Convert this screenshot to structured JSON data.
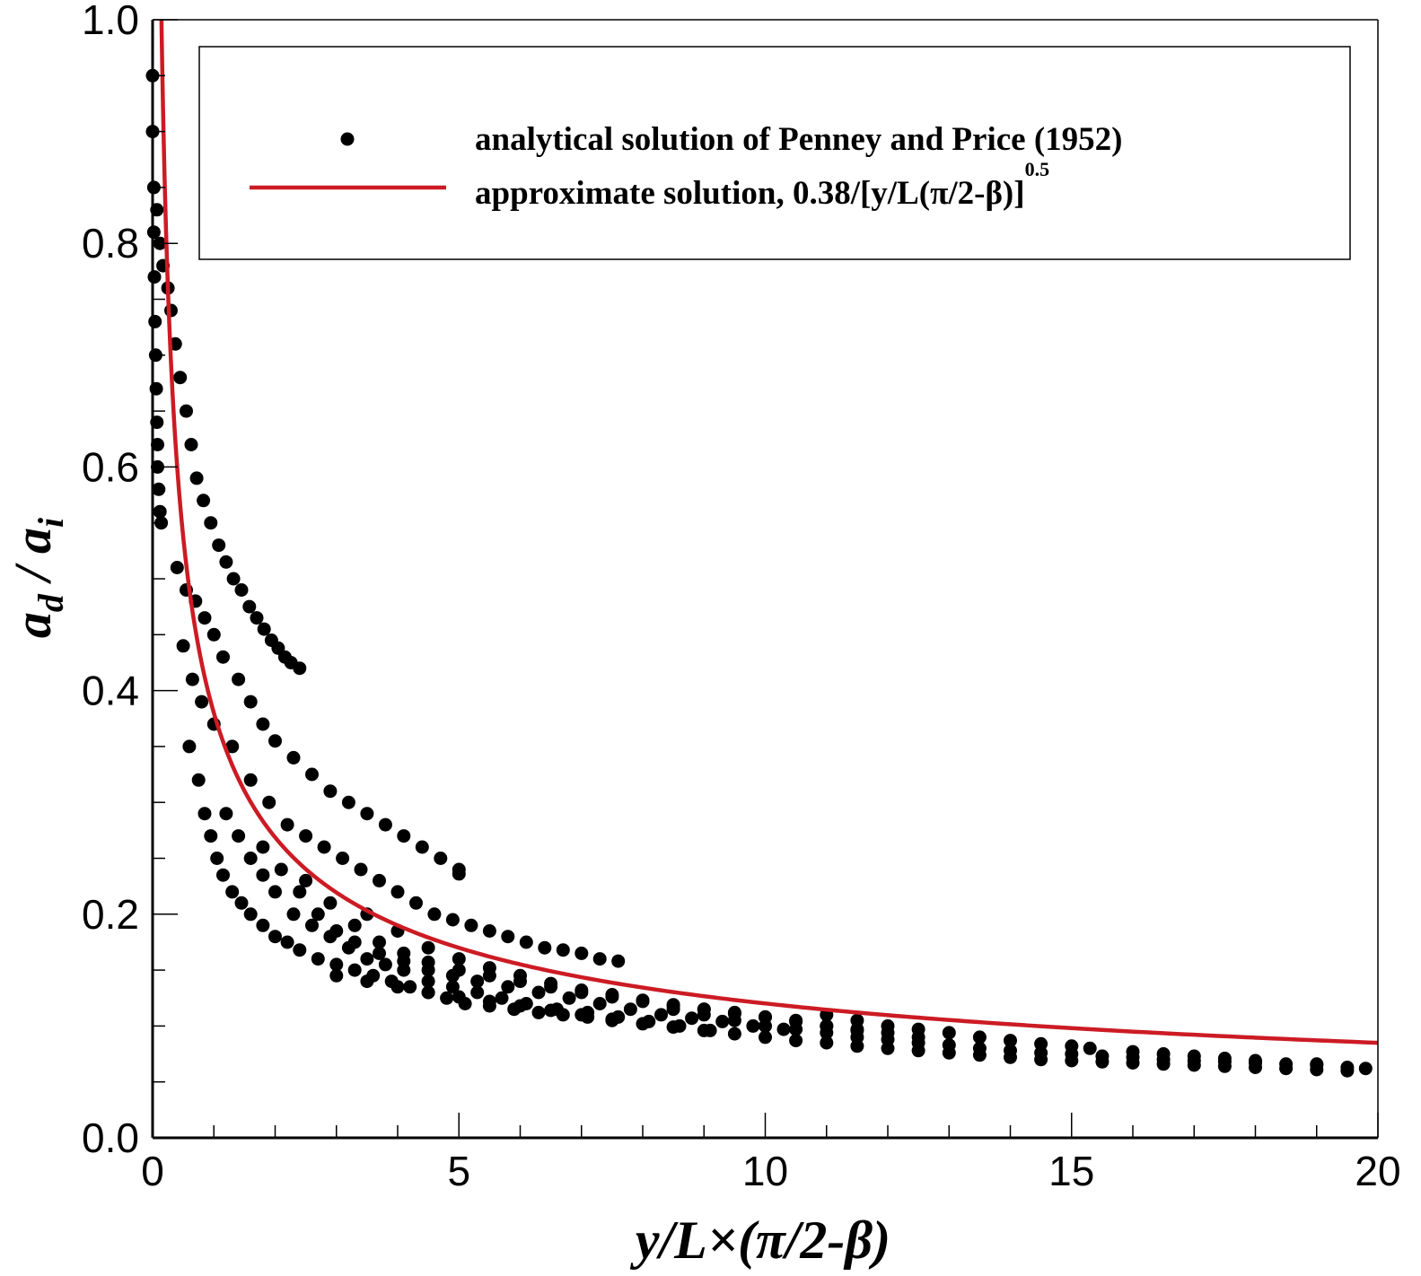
{
  "chart_data": {
    "type": "scatter",
    "xlabel": "y/L×(π/2-β)",
    "ylabel": "a_d / a_i",
    "ylabel_parts": {
      "a1": "a",
      "s1": "d",
      "slash": " / ",
      "a2": "a",
      "s2": "i"
    },
    "xlim": [
      0,
      20
    ],
    "ylim": [
      0,
      1.0
    ],
    "x_ticks": [
      0,
      5,
      10,
      15,
      20
    ],
    "x_tick_labels": [
      "0",
      "5",
      "10",
      "15",
      "20"
    ],
    "y_ticks": [
      0,
      0.2,
      0.4,
      0.6,
      0.8,
      1.0
    ],
    "y_tick_labels": [
      "0.0",
      "0.2",
      "0.4",
      "0.6",
      "0.8",
      "1.0"
    ],
    "x_minor_step": 1,
    "y_minor_step": 0.05,
    "grid": false,
    "legend_position": "top",
    "legend": {
      "markers_label": "analytical solution of Penney and Price (1952)",
      "line_label_main": "approximate solution, 0.38/[y/L(π/2-β)]",
      "line_label_sup": "0.5"
    },
    "colors": {
      "markers": "#000000",
      "line": "#cc1b24",
      "axes": "#000000"
    },
    "series": [
      {
        "name": "analytical solution of Penney and Price (1952)",
        "kind": "markers",
        "points": [
          [
            0.0,
            0.95
          ],
          [
            0.0,
            0.9
          ],
          [
            0.02,
            0.85
          ],
          [
            0.02,
            0.81
          ],
          [
            0.03,
            0.77
          ],
          [
            0.04,
            0.73
          ],
          [
            0.05,
            0.7
          ],
          [
            0.06,
            0.67
          ],
          [
            0.07,
            0.64
          ],
          [
            0.08,
            0.62
          ],
          [
            0.08,
            0.6
          ],
          [
            0.1,
            0.58
          ],
          [
            0.12,
            0.56
          ],
          [
            0.14,
            0.55
          ],
          [
            0.07,
            0.83
          ],
          [
            0.12,
            0.8
          ],
          [
            0.17,
            0.78
          ],
          [
            0.25,
            0.76
          ],
          [
            0.3,
            0.74
          ],
          [
            0.37,
            0.71
          ],
          [
            0.45,
            0.68
          ],
          [
            0.55,
            0.65
          ],
          [
            0.63,
            0.62
          ],
          [
            0.72,
            0.59
          ],
          [
            0.83,
            0.57
          ],
          [
            0.95,
            0.55
          ],
          [
            1.08,
            0.53
          ],
          [
            1.2,
            0.515
          ],
          [
            1.32,
            0.5
          ],
          [
            1.45,
            0.49
          ],
          [
            1.58,
            0.475
          ],
          [
            1.7,
            0.465
          ],
          [
            1.82,
            0.455
          ],
          [
            1.94,
            0.445
          ],
          [
            2.05,
            0.438
          ],
          [
            2.16,
            0.43
          ],
          [
            2.26,
            0.425
          ],
          [
            2.4,
            0.42
          ],
          [
            0.4,
            0.51
          ],
          [
            0.55,
            0.49
          ],
          [
            0.7,
            0.48
          ],
          [
            0.85,
            0.465
          ],
          [
            1.0,
            0.45
          ],
          [
            1.15,
            0.43
          ],
          [
            1.4,
            0.41
          ],
          [
            1.6,
            0.39
          ],
          [
            1.8,
            0.37
          ],
          [
            2.0,
            0.355
          ],
          [
            2.3,
            0.34
          ],
          [
            2.6,
            0.325
          ],
          [
            2.9,
            0.31
          ],
          [
            3.2,
            0.3
          ],
          [
            3.5,
            0.29
          ],
          [
            3.8,
            0.28
          ],
          [
            4.1,
            0.27
          ],
          [
            4.4,
            0.26
          ],
          [
            4.7,
            0.25
          ],
          [
            5.0,
            0.24
          ],
          [
            5.0,
            0.236
          ],
          [
            0.5,
            0.44
          ],
          [
            0.65,
            0.41
          ],
          [
            0.8,
            0.39
          ],
          [
            1.0,
            0.37
          ],
          [
            1.3,
            0.35
          ],
          [
            1.6,
            0.32
          ],
          [
            1.9,
            0.3
          ],
          [
            2.2,
            0.28
          ],
          [
            2.5,
            0.27
          ],
          [
            2.8,
            0.26
          ],
          [
            3.1,
            0.25
          ],
          [
            3.4,
            0.24
          ],
          [
            3.7,
            0.23
          ],
          [
            4.0,
            0.22
          ],
          [
            4.3,
            0.21
          ],
          [
            4.6,
            0.2
          ],
          [
            4.9,
            0.195
          ],
          [
            5.2,
            0.19
          ],
          [
            5.5,
            0.185
          ],
          [
            5.8,
            0.18
          ],
          [
            6.1,
            0.175
          ],
          [
            6.4,
            0.17
          ],
          [
            6.7,
            0.168
          ],
          [
            7.0,
            0.165
          ],
          [
            7.3,
            0.16
          ],
          [
            7.6,
            0.158
          ],
          [
            0.6,
            0.35
          ],
          [
            0.75,
            0.32
          ],
          [
            0.85,
            0.29
          ],
          [
            0.95,
            0.27
          ],
          [
            1.05,
            0.25
          ],
          [
            1.15,
            0.235
          ],
          [
            1.3,
            0.22
          ],
          [
            1.45,
            0.21
          ],
          [
            1.6,
            0.2
          ],
          [
            1.8,
            0.19
          ],
          [
            2.0,
            0.18
          ],
          [
            2.2,
            0.175
          ],
          [
            2.4,
            0.168
          ],
          [
            2.7,
            0.16
          ],
          [
            3.0,
            0.155
          ],
          [
            3.3,
            0.15
          ],
          [
            3.6,
            0.145
          ],
          [
            3.9,
            0.14
          ],
          [
            4.2,
            0.135
          ],
          [
            4.5,
            0.13
          ],
          [
            4.8,
            0.125
          ],
          [
            5.1,
            0.12
          ],
          [
            5.5,
            0.118
          ],
          [
            5.9,
            0.115
          ],
          [
            6.3,
            0.112
          ],
          [
            6.7,
            0.11
          ],
          [
            7.1,
            0.108
          ],
          [
            7.5,
            0.105
          ],
          [
            1.2,
            0.29
          ],
          [
            1.4,
            0.27
          ],
          [
            1.6,
            0.25
          ],
          [
            1.8,
            0.235
          ],
          [
            2.0,
            0.22
          ],
          [
            2.3,
            0.2
          ],
          [
            2.6,
            0.19
          ],
          [
            2.9,
            0.18
          ],
          [
            3.2,
            0.17
          ],
          [
            3.5,
            0.16
          ],
          [
            3.8,
            0.155
          ],
          [
            4.1,
            0.15
          ],
          [
            4.5,
            0.14
          ],
          [
            4.9,
            0.135
          ],
          [
            5.3,
            0.13
          ],
          [
            5.7,
            0.125
          ],
          [
            6.1,
            0.12
          ],
          [
            6.6,
            0.115
          ],
          [
            7.1,
            0.112
          ],
          [
            7.6,
            0.108
          ],
          [
            8.1,
            0.104
          ],
          [
            8.6,
            0.1
          ],
          [
            9.1,
            0.096
          ],
          [
            1.8,
            0.26
          ],
          [
            2.1,
            0.24
          ],
          [
            2.4,
            0.22
          ],
          [
            2.7,
            0.2
          ],
          [
            3.0,
            0.185
          ],
          [
            3.3,
            0.175
          ],
          [
            3.7,
            0.165
          ],
          [
            4.1,
            0.158
          ],
          [
            4.5,
            0.15
          ],
          [
            4.9,
            0.145
          ],
          [
            5.3,
            0.14
          ],
          [
            5.8,
            0.135
          ],
          [
            6.3,
            0.13
          ],
          [
            6.8,
            0.125
          ],
          [
            7.3,
            0.12
          ],
          [
            7.8,
            0.115
          ],
          [
            8.3,
            0.11
          ],
          [
            8.8,
            0.107
          ],
          [
            9.3,
            0.104
          ],
          [
            9.8,
            0.1
          ],
          [
            10.3,
            0.097
          ],
          [
            2.5,
            0.23
          ],
          [
            2.9,
            0.21
          ],
          [
            3.3,
            0.19
          ],
          [
            3.7,
            0.175
          ],
          [
            4.1,
            0.165
          ],
          [
            4.5,
            0.157
          ],
          [
            5.0,
            0.15
          ],
          [
            5.5,
            0.145
          ],
          [
            6.0,
            0.14
          ],
          [
            6.5,
            0.135
          ],
          [
            7.0,
            0.13
          ],
          [
            7.5,
            0.126
          ],
          [
            8.0,
            0.122
          ],
          [
            8.5,
            0.118
          ],
          [
            9.0,
            0.115
          ],
          [
            9.5,
            0.112
          ],
          [
            10.0,
            0.108
          ],
          [
            10.5,
            0.105
          ],
          [
            11.0,
            0.1
          ],
          [
            11.5,
            0.096
          ],
          [
            3.5,
            0.2
          ],
          [
            4.0,
            0.185
          ],
          [
            4.5,
            0.17
          ],
          [
            5.0,
            0.16
          ],
          [
            5.5,
            0.152
          ],
          [
            6.0,
            0.145
          ],
          [
            6.5,
            0.138
          ],
          [
            7.0,
            0.132
          ],
          [
            7.5,
            0.128
          ],
          [
            8.0,
            0.123
          ],
          [
            8.5,
            0.119
          ],
          [
            9.0,
            0.115
          ],
          [
            9.5,
            0.111
          ],
          [
            10.0,
            0.108
          ],
          [
            10.5,
            0.104
          ],
          [
            11.0,
            0.1
          ],
          [
            11.5,
            0.097
          ],
          [
            12.0,
            0.094
          ],
          [
            12.5,
            0.09
          ],
          [
            3.0,
            0.145
          ],
          [
            3.5,
            0.14
          ],
          [
            4.0,
            0.135
          ],
          [
            4.5,
            0.13
          ],
          [
            5.0,
            0.126
          ],
          [
            5.5,
            0.122
          ],
          [
            6.0,
            0.118
          ],
          [
            6.5,
            0.114
          ],
          [
            7.0,
            0.11
          ],
          [
            7.5,
            0.106
          ],
          [
            8.0,
            0.102
          ],
          [
            8.5,
            0.099
          ],
          [
            9.0,
            0.096
          ],
          [
            9.5,
            0.093
          ],
          [
            10.0,
            0.09
          ],
          [
            10.5,
            0.087
          ],
          [
            11.0,
            0.085
          ],
          [
            11.5,
            0.082
          ],
          [
            12.0,
            0.08
          ],
          [
            12.5,
            0.078
          ],
          [
            13.0,
            0.076
          ],
          [
            13.5,
            0.074
          ],
          [
            14.0,
            0.072
          ],
          [
            14.5,
            0.07
          ],
          [
            15.0,
            0.069
          ],
          [
            15.5,
            0.068
          ],
          [
            16.0,
            0.067
          ],
          [
            16.5,
            0.066
          ],
          [
            17.0,
            0.065
          ],
          [
            17.5,
            0.064
          ],
          [
            18.0,
            0.063
          ],
          [
            18.5,
            0.062
          ],
          [
            19.0,
            0.061
          ],
          [
            19.5,
            0.06
          ],
          [
            8.5,
            0.115
          ],
          [
            9.0,
            0.11
          ],
          [
            9.5,
            0.105
          ],
          [
            10.0,
            0.1
          ],
          [
            10.5,
            0.097
          ],
          [
            11.0,
            0.094
          ],
          [
            11.5,
            0.09
          ],
          [
            12.0,
            0.088
          ],
          [
            12.5,
            0.085
          ],
          [
            13.0,
            0.083
          ],
          [
            13.5,
            0.08
          ],
          [
            14.0,
            0.078
          ],
          [
            14.5,
            0.076
          ],
          [
            15.0,
            0.075
          ],
          [
            15.5,
            0.073
          ],
          [
            16.0,
            0.072
          ],
          [
            16.5,
            0.07
          ],
          [
            17.0,
            0.069
          ],
          [
            17.5,
            0.068
          ],
          [
            18.0,
            0.067
          ],
          [
            18.5,
            0.066
          ],
          [
            19.0,
            0.065
          ],
          [
            19.5,
            0.063
          ],
          [
            19.8,
            0.062
          ],
          [
            11.0,
            0.11
          ],
          [
            11.5,
            0.105
          ],
          [
            12.0,
            0.1
          ],
          [
            12.5,
            0.097
          ],
          [
            13.0,
            0.094
          ],
          [
            13.5,
            0.09
          ],
          [
            14.0,
            0.087
          ],
          [
            14.5,
            0.084
          ],
          [
            15.0,
            0.082
          ],
          [
            15.3,
            0.08
          ],
          [
            16.0,
            0.077
          ],
          [
            16.5,
            0.075
          ],
          [
            17.0,
            0.073
          ],
          [
            17.5,
            0.071
          ],
          [
            18.0,
            0.069
          ],
          [
            19.0,
            0.066
          ]
        ]
      },
      {
        "name": "approximate solution, 0.38/[y/L(π/2-β)]^0.5",
        "kind": "line",
        "formula": "0.38/x^0.5",
        "x_range": [
          0.144,
          20
        ]
      }
    ]
  }
}
